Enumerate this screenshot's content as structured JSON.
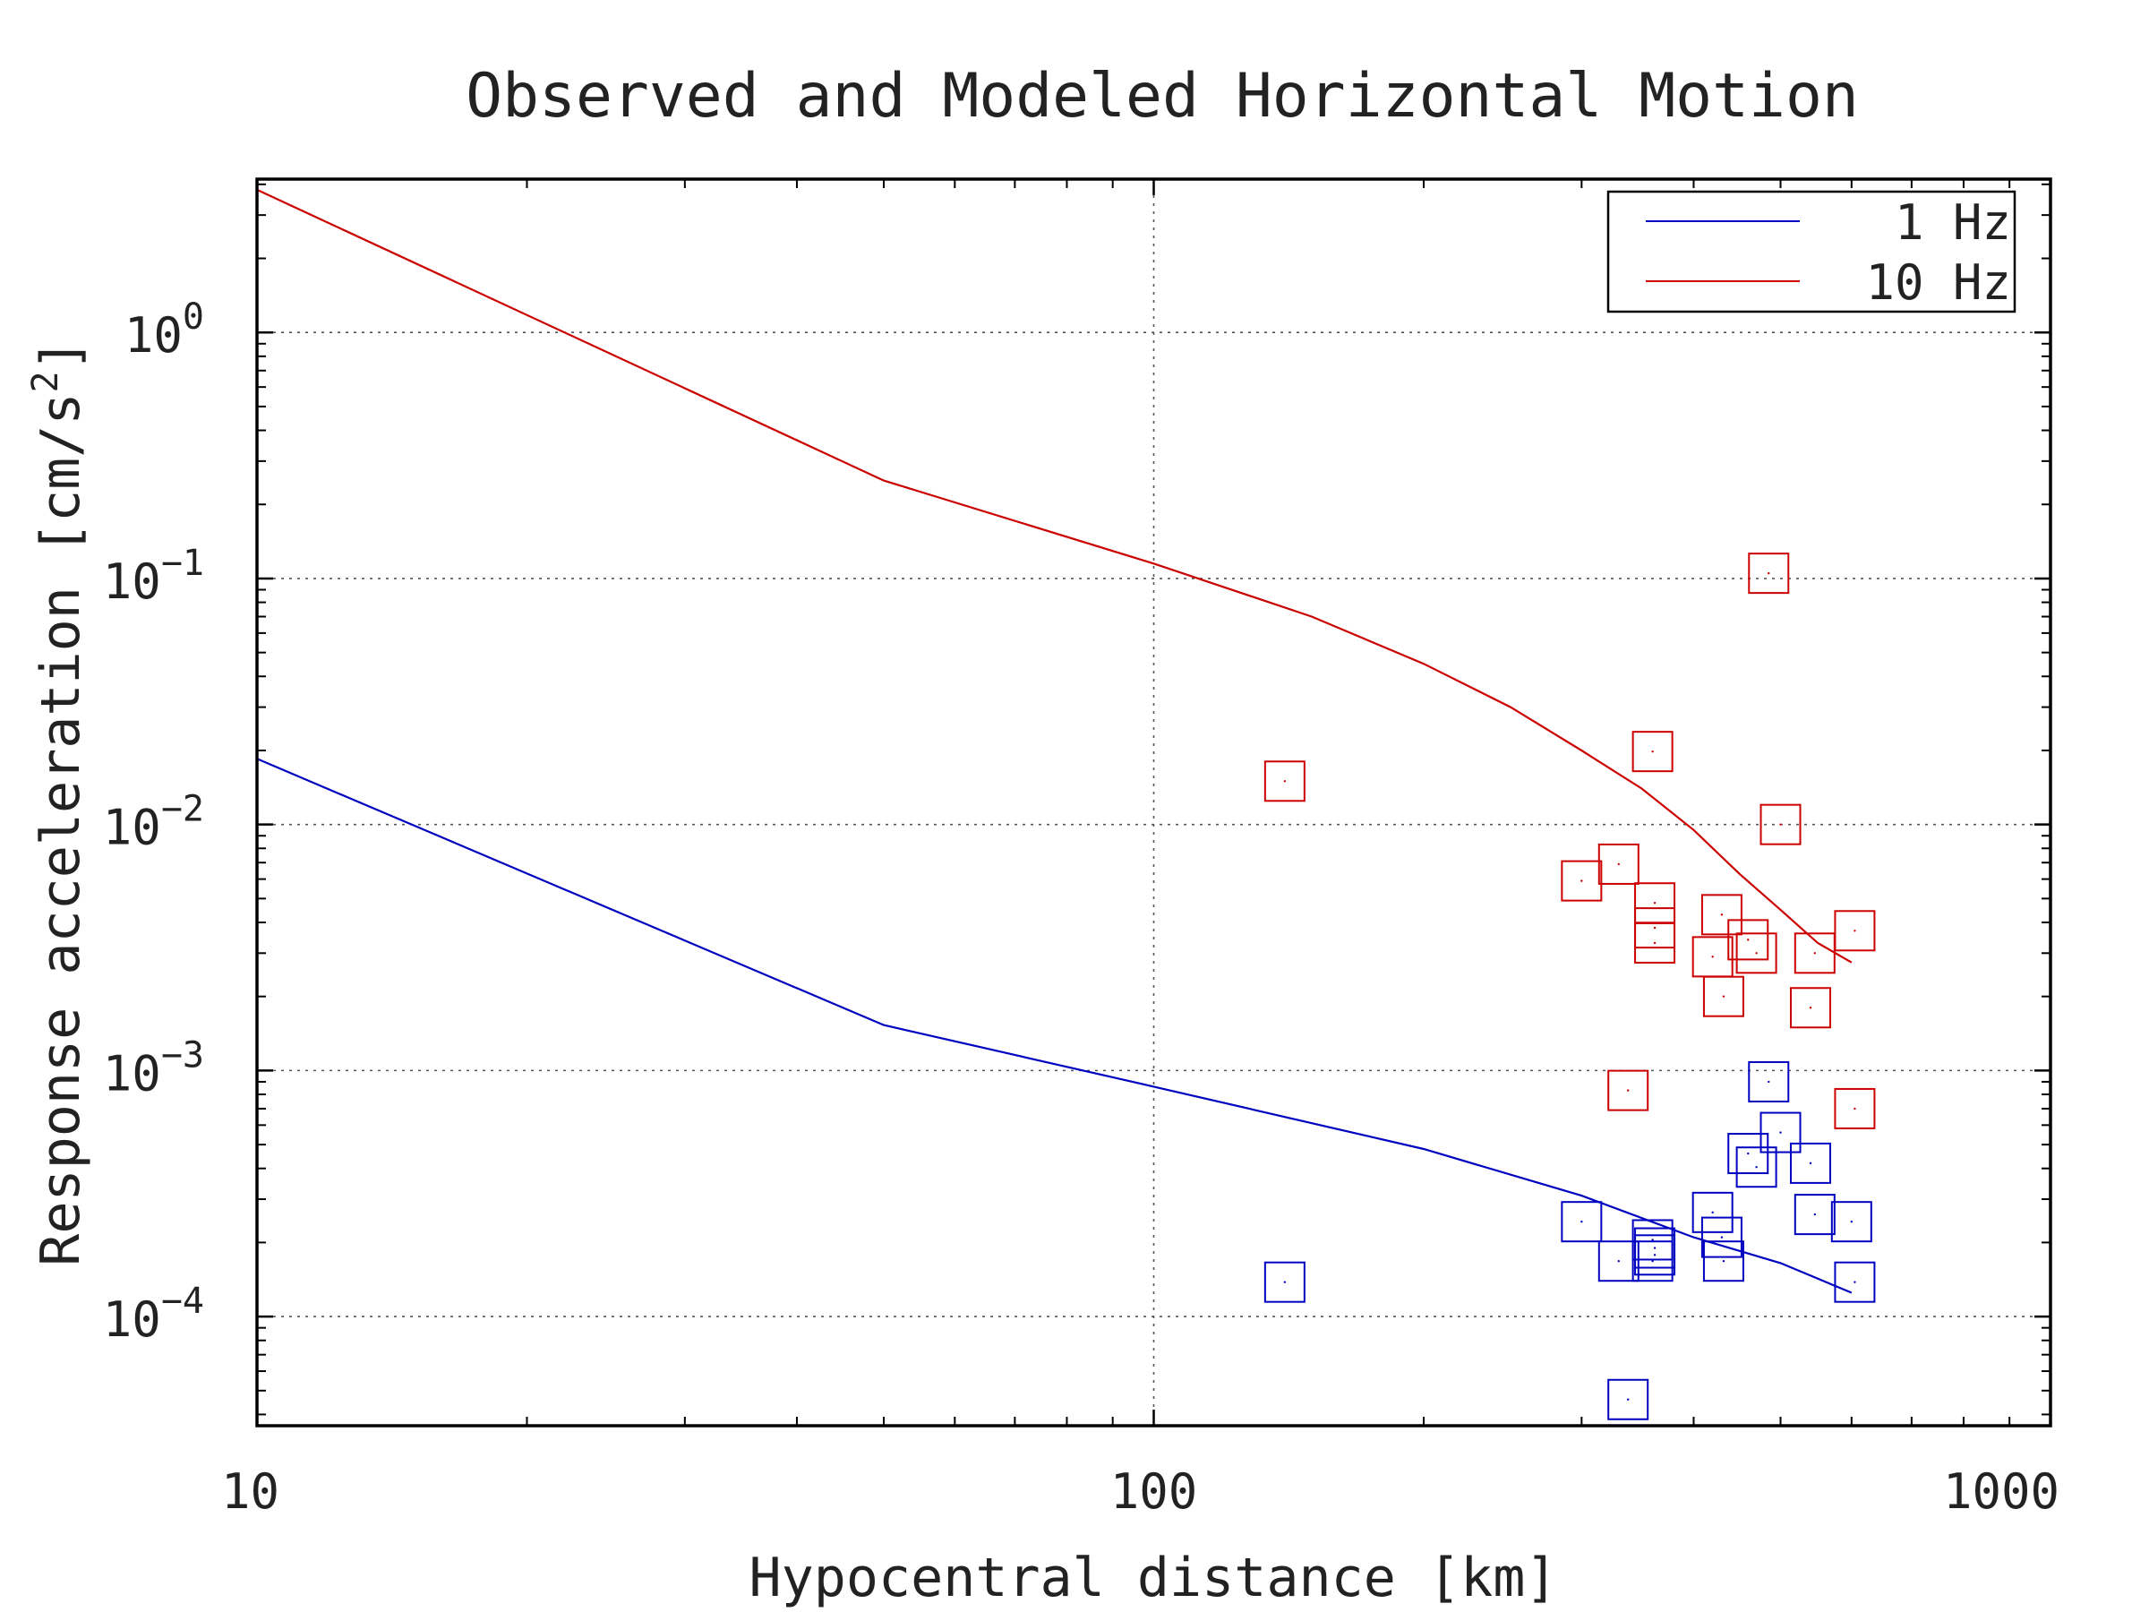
{
  "chart_data": {
    "type": "scatter",
    "title": "Observed and Modeled Horizontal Motion",
    "xlabel": "Hypocentral distance [km]",
    "ylabel_main": "Response acceleration [cm/s",
    "ylabel_sup": "2",
    "ylabel_end": "]",
    "xscale": "log",
    "yscale": "log",
    "xlim": [
      10,
      1000
    ],
    "ylim": [
      3.6e-05,
      4.2
    ],
    "grid": true,
    "legend_position": "top-right",
    "x_ticks": [
      {
        "value": 10,
        "label": "10"
      },
      {
        "value": 100,
        "label": "100"
      },
      {
        "value": 1000,
        "label": "1000"
      }
    ],
    "y_ticks": [
      {
        "value": 1,
        "base": "10",
        "exp": "0"
      },
      {
        "value": 0.1,
        "base": "10",
        "exp": "−1"
      },
      {
        "value": 0.01,
        "base": "10",
        "exp": "−2"
      },
      {
        "value": 0.001,
        "base": "10",
        "exp": "−3"
      },
      {
        "value": 0.0001,
        "base": "10",
        "exp": "−4"
      }
    ],
    "series": [
      {
        "name": "1 Hz",
        "color": "#0000c0",
        "line": [
          [
            10,
            0.0185
          ],
          [
            50,
            0.00153
          ],
          [
            100,
            0.00086
          ],
          [
            200,
            0.00048
          ],
          [
            300,
            0.00031
          ],
          [
            400,
            0.00021
          ],
          [
            500,
            0.000165
          ],
          [
            600,
            0.000125
          ]
        ],
        "points": [
          [
            140,
            0.000138
          ],
          [
            300,
            0.000243
          ],
          [
            330,
            0.000168
          ],
          [
            338,
            4.6e-05
          ],
          [
            360,
            0.000168
          ],
          [
            360,
            0.000205
          ],
          [
            362,
            0.00019
          ],
          [
            362,
            0.000178
          ],
          [
            420,
            0.000265
          ],
          [
            430,
            0.00021
          ],
          [
            432,
            0.000168
          ],
          [
            460,
            0.00046
          ],
          [
            470,
            0.000405
          ],
          [
            485,
            0.0009
          ],
          [
            500,
            0.00056
          ],
          [
            540,
            0.00042
          ],
          [
            546,
            0.00026
          ],
          [
            600,
            0.000243
          ],
          [
            605,
            0.000138
          ]
        ]
      },
      {
        "name": "10 Hz",
        "color": "#cc0000",
        "line": [
          [
            10,
            3.8
          ],
          [
            50,
            0.25
          ],
          [
            100,
            0.115
          ],
          [
            150,
            0.07
          ],
          [
            200,
            0.045
          ],
          [
            250,
            0.03
          ],
          [
            300,
            0.02
          ],
          [
            350,
            0.014
          ],
          [
            400,
            0.0095
          ],
          [
            450,
            0.0063
          ],
          [
            500,
            0.0045
          ],
          [
            550,
            0.0033
          ],
          [
            600,
            0.00275
          ]
        ],
        "points": [
          [
            140,
            0.015
          ],
          [
            300,
            0.0059
          ],
          [
            330,
            0.0069
          ],
          [
            338,
            0.00083
          ],
          [
            360,
            0.0198
          ],
          [
            362,
            0.0048
          ],
          [
            362,
            0.0038
          ],
          [
            362,
            0.0033
          ],
          [
            420,
            0.0029
          ],
          [
            430,
            0.0043
          ],
          [
            432,
            0.002
          ],
          [
            460,
            0.0034
          ],
          [
            470,
            0.003
          ],
          [
            485,
            0.105
          ],
          [
            500,
            0.01
          ],
          [
            540,
            0.0018
          ],
          [
            546,
            0.003
          ],
          [
            605,
            0.0037
          ],
          [
            605,
            0.0007
          ]
        ]
      }
    ]
  }
}
